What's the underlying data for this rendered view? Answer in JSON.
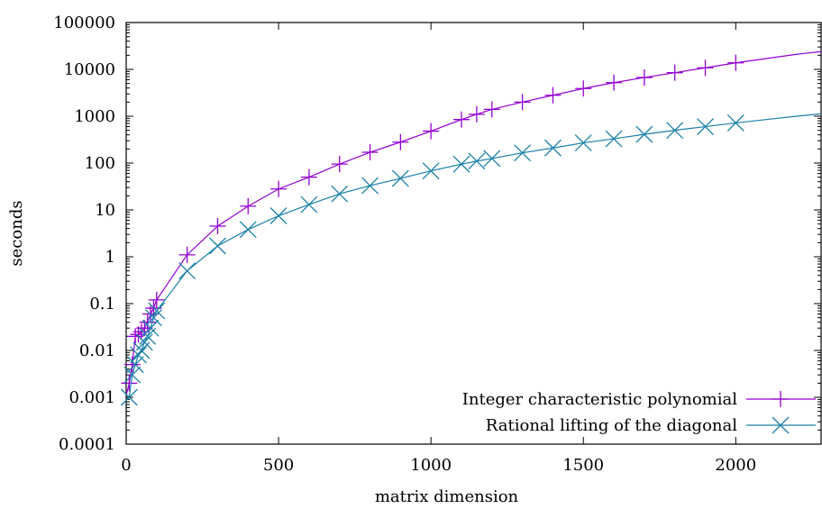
{
  "chart_data": {
    "type": "line",
    "xlabel": "matrix dimension",
    "ylabel": "seconds",
    "xlim": [
      0,
      2280
    ],
    "ylim": [
      0.0001,
      100000
    ],
    "yscale": "log",
    "grid": false,
    "legend_position": "bottom-right",
    "x_ticks": [
      {
        "value": 0,
        "label": "0"
      },
      {
        "value": 500,
        "label": "500"
      },
      {
        "value": 1000,
        "label": "1000"
      },
      {
        "value": 1500,
        "label": "1500"
      },
      {
        "value": 2000,
        "label": "2000"
      }
    ],
    "y_ticks": [
      {
        "value": 0.0001,
        "label": "0.0001"
      },
      {
        "value": 0.001,
        "label": "0.001"
      },
      {
        "value": 0.01,
        "label": "0.01"
      },
      {
        "value": 0.1,
        "label": "0.1"
      },
      {
        "value": 1,
        "label": "1"
      },
      {
        "value": 10,
        "label": "10"
      },
      {
        "value": 100,
        "label": "100"
      },
      {
        "value": 1000,
        "label": "1000"
      },
      {
        "value": 10000,
        "label": "10000"
      },
      {
        "value": 100000,
        "label": "100000"
      }
    ],
    "series": [
      {
        "name": "Integer characteristic polynomial",
        "color": "#9400d3",
        "marker": "plus",
        "x": [
          10,
          20,
          30,
          40,
          50,
          60,
          70,
          80,
          90,
          100,
          200,
          300,
          400,
          500,
          600,
          700,
          800,
          900,
          1000,
          1100,
          1150,
          1200,
          1300,
          1400,
          1500,
          1600,
          1700,
          1800,
          1900,
          2000
        ],
        "y": [
          0.002,
          0.005,
          0.02,
          0.022,
          0.025,
          0.03,
          0.04,
          0.06,
          0.08,
          0.12,
          1.1,
          4.5,
          12,
          28,
          50,
          95,
          170,
          280,
          480,
          850,
          1100,
          1400,
          2000,
          2800,
          3900,
          5200,
          6700,
          8500,
          10800,
          13800
        ],
        "line_x": [
          0,
          10,
          20,
          30,
          40,
          50,
          60,
          70,
          80,
          90,
          100,
          200,
          300,
          400,
          500,
          600,
          700,
          800,
          900,
          1000,
          1100,
          1150,
          1200,
          1300,
          1400,
          1500,
          1600,
          1700,
          1800,
          1900,
          2000,
          2100,
          2200,
          2280
        ],
        "line_y": [
          0.0011,
          0.002,
          0.005,
          0.02,
          0.022,
          0.025,
          0.03,
          0.04,
          0.06,
          0.08,
          0.12,
          1.1,
          4.5,
          12,
          28,
          50,
          95,
          170,
          280,
          480,
          850,
          1100,
          1400,
          2000,
          2800,
          3900,
          5200,
          6700,
          8500,
          10800,
          13800,
          17000,
          21000,
          24000
        ]
      },
      {
        "name": "Rational lifting of the diagonal",
        "color": "#1a80a8",
        "marker": "x",
        "x": [
          10,
          20,
          30,
          40,
          50,
          60,
          70,
          80,
          90,
          100,
          200,
          300,
          400,
          500,
          600,
          700,
          800,
          900,
          1000,
          1100,
          1150,
          1200,
          1300,
          1400,
          1500,
          1600,
          1700,
          1800,
          1900,
          2000
        ],
        "y": [
          0.001,
          0.003,
          0.005,
          0.008,
          0.01,
          0.015,
          0.02,
          0.03,
          0.05,
          0.07,
          0.5,
          1.7,
          3.8,
          7.5,
          13,
          22,
          33,
          47,
          68,
          95,
          110,
          125,
          165,
          210,
          270,
          330,
          410,
          500,
          600,
          720
        ],
        "line_x": [
          0,
          10,
          20,
          30,
          40,
          50,
          60,
          70,
          80,
          90,
          100,
          200,
          300,
          400,
          500,
          600,
          700,
          800,
          900,
          1000,
          1100,
          1150,
          1200,
          1300,
          1400,
          1500,
          1600,
          1700,
          1800,
          1900,
          2000,
          2100,
          2200,
          2280
        ],
        "line_y": [
          0.0009,
          0.001,
          0.003,
          0.005,
          0.008,
          0.01,
          0.015,
          0.02,
          0.03,
          0.05,
          0.07,
          0.5,
          1.7,
          3.8,
          7.5,
          13,
          22,
          33,
          47,
          68,
          95,
          110,
          125,
          165,
          210,
          270,
          330,
          410,
          500,
          600,
          720,
          850,
          1000,
          1130
        ]
      }
    ]
  }
}
